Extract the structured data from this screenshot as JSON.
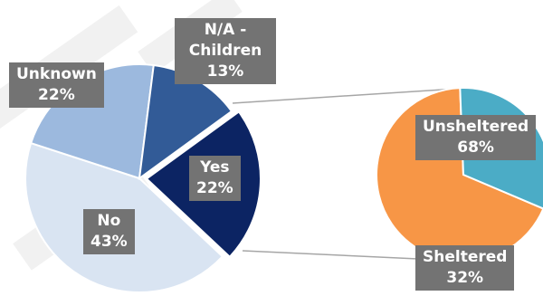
{
  "colors": {
    "label_bg": "#737373",
    "label_text": "#ffffff",
    "connector": "#a6a6a6",
    "slice_border": "#ffffff"
  },
  "chart_data": [
    {
      "type": "pie",
      "slices": [
        {
          "label": "Yes",
          "value": 22,
          "pct_label": "22%",
          "color": "#0c2463"
        },
        {
          "label": "No",
          "value": 43,
          "pct_label": "43%",
          "color": "#d9e4f2"
        },
        {
          "label": "Unknown",
          "value": 22,
          "pct_label": "22%",
          "color": "#9cb9de"
        },
        {
          "label": "N/A - Children",
          "value": 13,
          "pct_label": "13%",
          "color": "#325b97"
        }
      ],
      "exploded_slice": "Yes",
      "legend": "none"
    },
    {
      "type": "pie",
      "breakdown_of": "Yes",
      "slices": [
        {
          "label": "Unsheltered",
          "value": 68,
          "pct_label": "68%",
          "color": "#f79646"
        },
        {
          "label": "Sheltered",
          "value": 32,
          "pct_label": "32%",
          "color": "#4bacc6"
        }
      ],
      "legend": "none"
    }
  ]
}
